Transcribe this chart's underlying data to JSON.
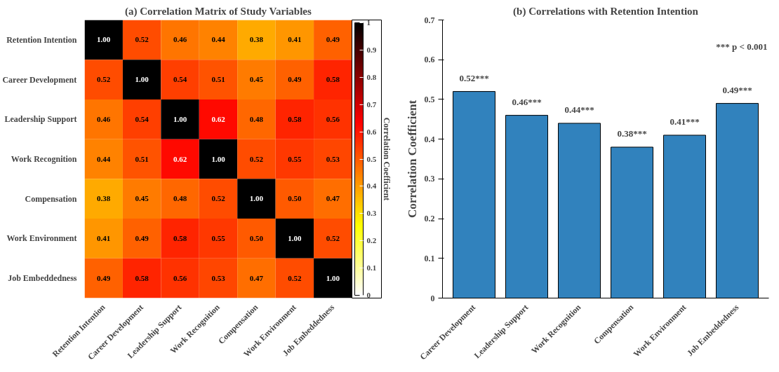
{
  "chart_data": [
    {
      "type": "heatmap",
      "title": "(a) Correlation Matrix of Study Variables",
      "categories": [
        "Retention Intention",
        "Career Development",
        "Leadership Support",
        "Work Recognition",
        "Compensation",
        "Work Environment",
        "Job Embeddedness"
      ],
      "y_categories": [
        "Retention Intention",
        "Career Development",
        "Leadership Support",
        "Work Recognition",
        "Compensation",
        "Work Environment",
        "Job Embeddedness"
      ],
      "cells": [
        [
          1.0,
          0.52,
          0.46,
          0.44,
          0.38,
          0.41,
          0.49
        ],
        [
          0.52,
          1.0,
          0.54,
          0.51,
          0.45,
          0.49,
          0.58
        ],
        [
          0.46,
          0.54,
          1.0,
          0.62,
          0.48,
          0.58,
          0.56
        ],
        [
          0.44,
          0.51,
          0.62,
          1.0,
          0.52,
          0.55,
          0.53
        ],
        [
          0.38,
          0.45,
          0.48,
          0.52,
          1.0,
          0.5,
          0.47
        ],
        [
          0.41,
          0.49,
          0.58,
          0.55,
          0.5,
          1.0,
          0.52
        ],
        [
          0.49,
          0.58,
          0.56,
          0.53,
          0.47,
          0.52,
          1.0
        ]
      ],
      "cell_labels": [
        [
          "1.00",
          "0.52",
          "0.46",
          "0.44",
          "0.38",
          "0.41",
          "0.49"
        ],
        [
          "0.52",
          "1.00",
          "0.54",
          "0.51",
          "0.45",
          "0.49",
          "0.58"
        ],
        [
          "0.46",
          "0.54",
          "1.00",
          "0.62",
          "0.48",
          "0.58",
          "0.56"
        ],
        [
          "0.44",
          "0.51",
          "0.62",
          "1.00",
          "0.52",
          "0.55",
          "0.53"
        ],
        [
          "0.38",
          "0.45",
          "0.48",
          "0.52",
          "1.00",
          "0.50",
          "0.47"
        ],
        [
          "0.41",
          "0.49",
          "0.58",
          "0.55",
          "0.50",
          "1.00",
          "0.52"
        ],
        [
          "0.49",
          "0.58",
          "0.56",
          "0.53",
          "0.47",
          "0.52",
          "1.00"
        ]
      ],
      "clim": [
        0,
        1
      ],
      "cticks": [
        0,
        0.1,
        0.2,
        0.3,
        0.4,
        0.5,
        0.6,
        0.7,
        0.8,
        0.9,
        1
      ],
      "clabel": "Correlation Coefficient"
    },
    {
      "type": "bar",
      "title": "(b) Correlations with Retention Intention",
      "ylabel": "Correlation Coefficient",
      "categories": [
        "Career Development",
        "Leadership Support",
        "Work Recognition",
        "Compensation",
        "Work Environment",
        "Job Embeddedness"
      ],
      "values": [
        0.52,
        0.46,
        0.44,
        0.38,
        0.41,
        0.49
      ],
      "color": "#3182bd",
      "value_labels": [
        "0.52***",
        "0.46***",
        "0.44***",
        "0.38***",
        "0.41***",
        "0.49***"
      ],
      "ylim": [
        0,
        0.7
      ],
      "yticks": [
        0,
        0.1,
        0.2,
        0.3,
        0.4,
        0.5,
        0.6,
        0.7
      ],
      "grid": false,
      "annotations": [
        "*** p < 0.001"
      ]
    }
  ]
}
